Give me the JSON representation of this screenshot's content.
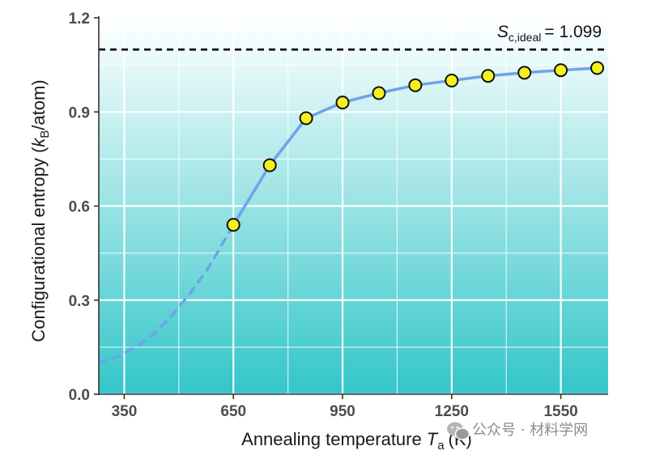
{
  "chart_data": {
    "type": "line",
    "xlabel": "Annealing temperature",
    "xlabel_symbol": "T",
    "xlabel_subscript": "a",
    "xlabel_unit": "(K)",
    "ylabel": "Configurational entropy (",
    "ylabel_symbol": "k",
    "ylabel_subscript": "B",
    "ylabel_unit": "/atom)",
    "xlim": [
      280,
      1680
    ],
    "ylim": [
      0,
      1.2
    ],
    "xticks": [
      350,
      650,
      950,
      1250,
      1550
    ],
    "yticks": [
      0.0,
      0.3,
      0.6,
      0.9,
      1.2
    ],
    "ytick_labels": [
      "0.0",
      "0.3",
      "0.6",
      "0.9",
      "1.2"
    ],
    "grid": true,
    "reference_line": {
      "value": 1.099,
      "label_symbol": "S",
      "label_subscript": "c,ideal",
      "label_value": "= 1.099"
    },
    "series": [
      {
        "style": "dashed",
        "x": [
          280,
          330,
          380,
          430,
          480,
          530,
          580,
          630,
          650
        ],
        "y": [
          0.1,
          0.12,
          0.15,
          0.19,
          0.25,
          0.32,
          0.4,
          0.5,
          0.54
        ]
      },
      {
        "style": "solid-with-markers",
        "x": [
          650,
          750,
          850,
          950,
          1050,
          1150,
          1250,
          1350,
          1450,
          1550,
          1650
        ],
        "y": [
          0.54,
          0.73,
          0.88,
          0.93,
          0.96,
          0.985,
          1.0,
          1.015,
          1.025,
          1.033,
          1.04
        ]
      }
    ],
    "colors": {
      "line": "#6ea3ea",
      "marker_fill": "#f5f01e",
      "marker_edge": "#111111",
      "reference": "#000000",
      "bg_top": "#ffffff",
      "bg_bottom": "#33c6c9",
      "grid": "#ffffff"
    }
  },
  "watermark": {
    "text": "公众号 · 材料学网",
    "icon": "wechat-icon"
  }
}
